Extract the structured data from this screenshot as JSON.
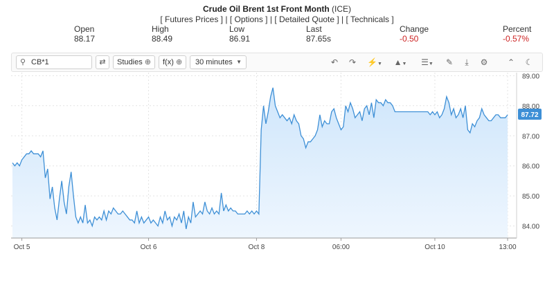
{
  "header": {
    "instrument": "Crude Oil Brent 1st Front Month",
    "exchange": "(ICE)",
    "links": [
      "[ Futures Prices ]",
      "[ Options ]",
      "[ Detailed Quote ]",
      "[ Technicals ]"
    ],
    "link_separator": " | "
  },
  "quote": [
    {
      "label": "Open",
      "value": "88.17",
      "negative": false
    },
    {
      "label": "High",
      "value": "88.49",
      "negative": false
    },
    {
      "label": "Low",
      "value": "86.91",
      "negative": false
    },
    {
      "label": "Last",
      "value": "87.65s",
      "negative": false
    },
    {
      "label": "Change",
      "value": "-0.50",
      "negative": true
    },
    {
      "label": "Percent",
      "value": "-0.57%",
      "negative": true
    }
  ],
  "toolbar": {
    "symbol_value": "CB*1",
    "studies_label": "Studies",
    "fx_label": "f(x)",
    "interval_label": "30 minutes"
  },
  "colors": {
    "line": "#3d8fd6",
    "fill_top": "#cfe6fb",
    "last_badge": "#3d8fd6",
    "negative": "#cc2222"
  },
  "chart_data": {
    "type": "area",
    "title": "",
    "xlabel": "",
    "ylabel": "",
    "ylim": [
      83.6,
      89.1
    ],
    "y_ticks": [
      "84.00",
      "85.00",
      "86.00",
      "87.00",
      "88.00",
      "89.00"
    ],
    "x_ticks": [
      {
        "label": "Oct 5",
        "index": 4
      },
      {
        "label": "Oct 6",
        "index": 58
      },
      {
        "label": "Oct 8",
        "index": 104
      },
      {
        "label": "06:00",
        "index": 140
      },
      {
        "label": "Oct 10",
        "index": 180
      },
      {
        "label": "13:00",
        "index": 211
      }
    ],
    "grid": true,
    "last_value_label": "87.72",
    "series": [
      {
        "values": [
          86.1,
          86.0,
          86.1,
          86.0,
          86.2,
          86.3,
          86.4,
          86.4,
          86.5,
          86.4,
          86.4,
          86.4,
          86.3,
          86.5,
          85.6,
          85.9,
          84.9,
          85.3,
          84.6,
          84.2,
          84.9,
          85.5,
          84.8,
          84.4,
          85.3,
          85.8,
          85.0,
          84.3,
          84.1,
          84.3,
          84.1,
          84.7,
          84.1,
          84.2,
          84.0,
          84.3,
          84.2,
          84.3,
          84.2,
          84.5,
          84.2,
          84.5,
          84.4,
          84.6,
          84.5,
          84.4,
          84.4,
          84.5,
          84.4,
          84.3,
          84.2,
          84.2,
          84.1,
          84.5,
          84.1,
          84.3,
          84.1,
          84.2,
          84.3,
          84.1,
          84.2,
          84.1,
          84.0,
          84.3,
          84.1,
          84.5,
          84.2,
          84.3,
          84.0,
          84.3,
          84.2,
          84.4,
          84.1,
          84.5,
          83.9,
          84.3,
          84.1,
          84.8,
          84.3,
          84.4,
          84.5,
          84.4,
          84.8,
          84.5,
          84.4,
          84.6,
          84.4,
          84.5,
          84.4,
          85.1,
          84.5,
          84.7,
          84.5,
          84.6,
          84.5,
          84.5,
          84.4,
          84.4,
          84.4,
          84.4,
          84.5,
          84.4,
          84.5,
          84.4,
          84.5,
          84.4,
          87.2,
          88.0,
          87.4,
          87.8,
          88.3,
          88.6,
          88.0,
          87.8,
          87.6,
          87.7,
          87.6,
          87.5,
          87.6,
          87.4,
          87.7,
          87.5,
          87.4,
          87.0,
          86.9,
          86.6,
          86.8,
          86.8,
          86.9,
          87.0,
          87.2,
          87.7,
          87.3,
          87.5,
          87.4,
          87.4,
          87.8,
          87.9,
          87.6,
          87.4,
          87.2,
          87.3,
          88.0,
          87.8,
          88.1,
          87.9,
          87.6,
          87.7,
          87.8,
          87.5,
          87.9,
          88.0,
          87.7,
          88.1,
          87.6,
          88.2,
          88.1,
          88.1,
          88.0,
          88.2,
          88.1,
          88.1,
          88.0,
          87.8,
          87.8,
          87.8,
          87.8,
          87.8,
          87.8,
          87.8,
          87.8,
          87.8,
          87.8,
          87.8,
          87.8,
          87.8,
          87.8,
          87.8,
          87.7,
          87.8,
          87.7,
          87.8,
          87.6,
          87.7,
          87.9,
          88.3,
          88.1,
          87.7,
          87.9,
          87.6,
          87.7,
          87.9,
          87.6,
          88.0,
          87.2,
          87.1,
          87.4,
          87.3,
          87.5,
          87.6,
          87.9,
          87.7,
          87.6,
          87.5,
          87.5,
          87.6,
          87.7,
          87.7,
          87.6,
          87.6,
          87.6,
          87.7
        ]
      }
    ]
  }
}
